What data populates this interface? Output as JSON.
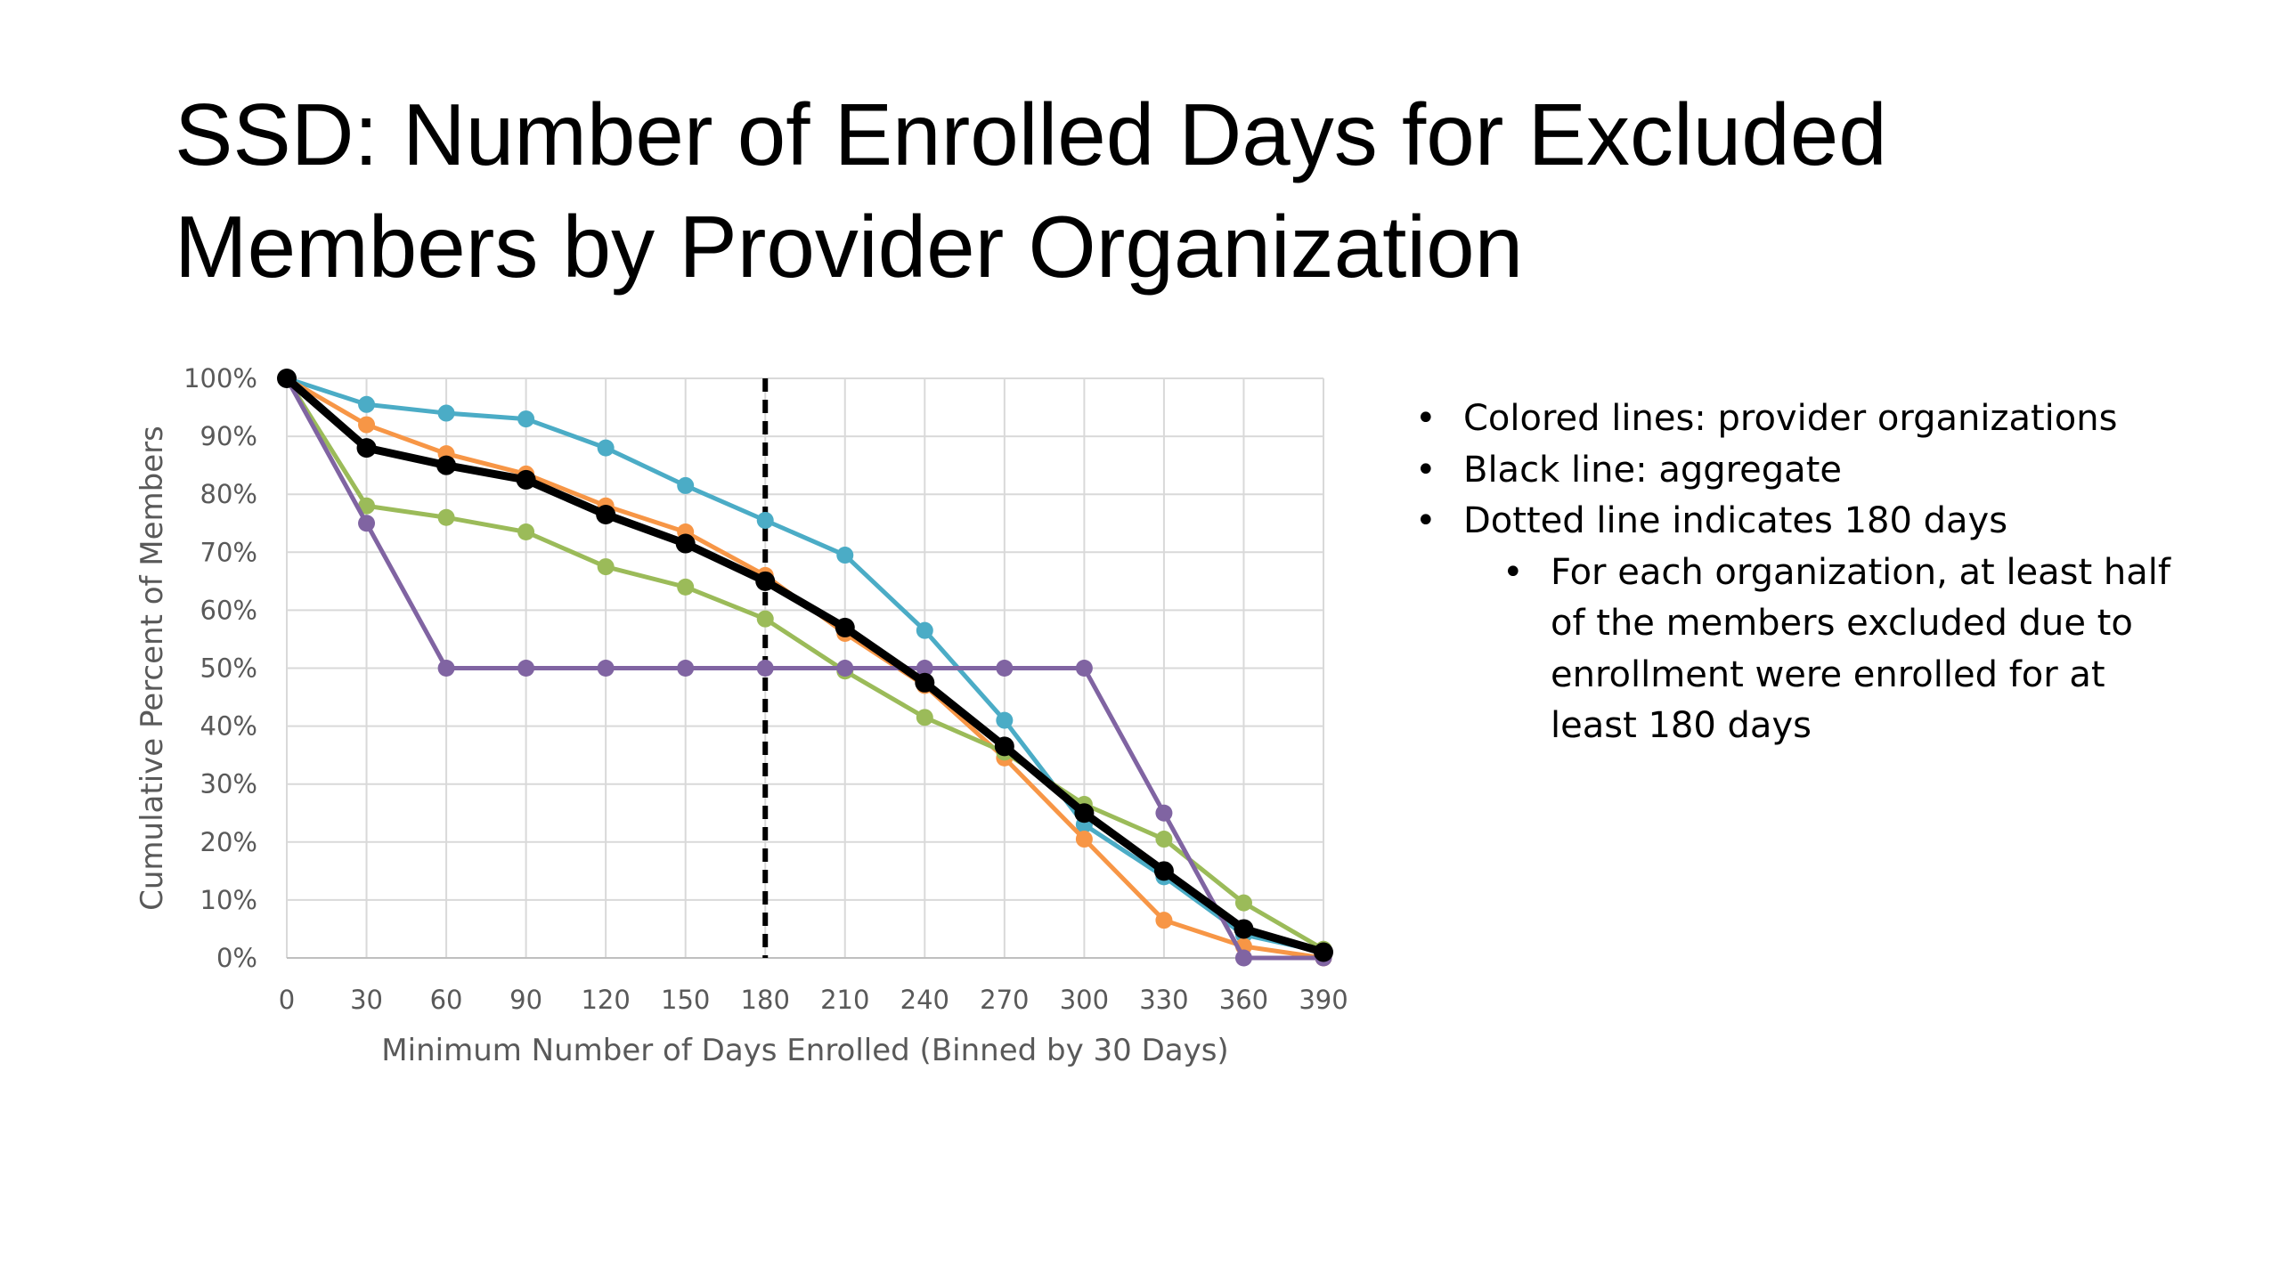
{
  "chart_data": {
    "type": "line",
    "title": "SSD: Number of Enrolled Days for Excluded Members by Provider Organization",
    "x_label": "Minimum Number of Days Enrolled (Binned by 30 Days)",
    "y_label": "Cumulative Percent of Members",
    "x": [
      0,
      30,
      60,
      90,
      120,
      150,
      180,
      210,
      240,
      270,
      300,
      330,
      360,
      390
    ],
    "series": [
      {
        "color": "#4bacc6",
        "values": [
          100,
          95.5,
          94,
          93,
          88,
          81.5,
          75.5,
          69.5,
          56.5,
          41,
          23,
          14,
          4,
          1
        ]
      },
      {
        "color": "#f79646",
        "values": [
          100,
          92,
          87,
          83.5,
          78,
          73.5,
          66,
          56,
          47,
          34.5,
          20.5,
          6.5,
          2,
          0
        ]
      },
      {
        "color": "#9bbb59",
        "values": [
          100,
          78,
          76,
          73.5,
          67.5,
          64,
          58.5,
          49.5,
          41.5,
          35.5,
          26.5,
          20.5,
          9.5,
          1.5
        ]
      },
      {
        "color": "#8064a2",
        "values": [
          100,
          75,
          50,
          50,
          50,
          50,
          50,
          50,
          50,
          50,
          50,
          25,
          0,
          0
        ]
      },
      {
        "color": "#000000",
        "values": [
          100,
          88,
          85,
          82.5,
          76.5,
          71.5,
          65,
          57,
          47.5,
          36.5,
          25,
          15,
          5,
          1
        ]
      }
    ],
    "xlim": [
      0,
      390
    ],
    "xticks": [
      0,
      30,
      60,
      90,
      120,
      150,
      180,
      210,
      240,
      270,
      300,
      330,
      360,
      390
    ],
    "ylim": [
      0,
      100
    ],
    "yticks": [
      {
        "value": 0,
        "label": "0%"
      },
      {
        "value": 10,
        "label": "10%"
      },
      {
        "value": 20,
        "label": "20%"
      },
      {
        "value": 30,
        "label": "30%"
      },
      {
        "value": 40,
        "label": "40%"
      },
      {
        "value": 50,
        "label": "50%"
      },
      {
        "value": 60,
        "label": "60%"
      },
      {
        "value": 70,
        "label": "70%"
      },
      {
        "value": 80,
        "label": "80%"
      },
      {
        "value": 90,
        "label": "90%"
      },
      {
        "value": 100,
        "label": "100%"
      }
    ],
    "grid": true,
    "vline": 180
  },
  "notes": {
    "bullets": [
      "Colored lines: provider organizations",
      "Black line: aggregate",
      "Dotted line indicates 180 days"
    ],
    "sub_bullets": [
      "For each organization, at least half of the members excluded due to enrollment were enrolled for at least 180 days"
    ]
  }
}
